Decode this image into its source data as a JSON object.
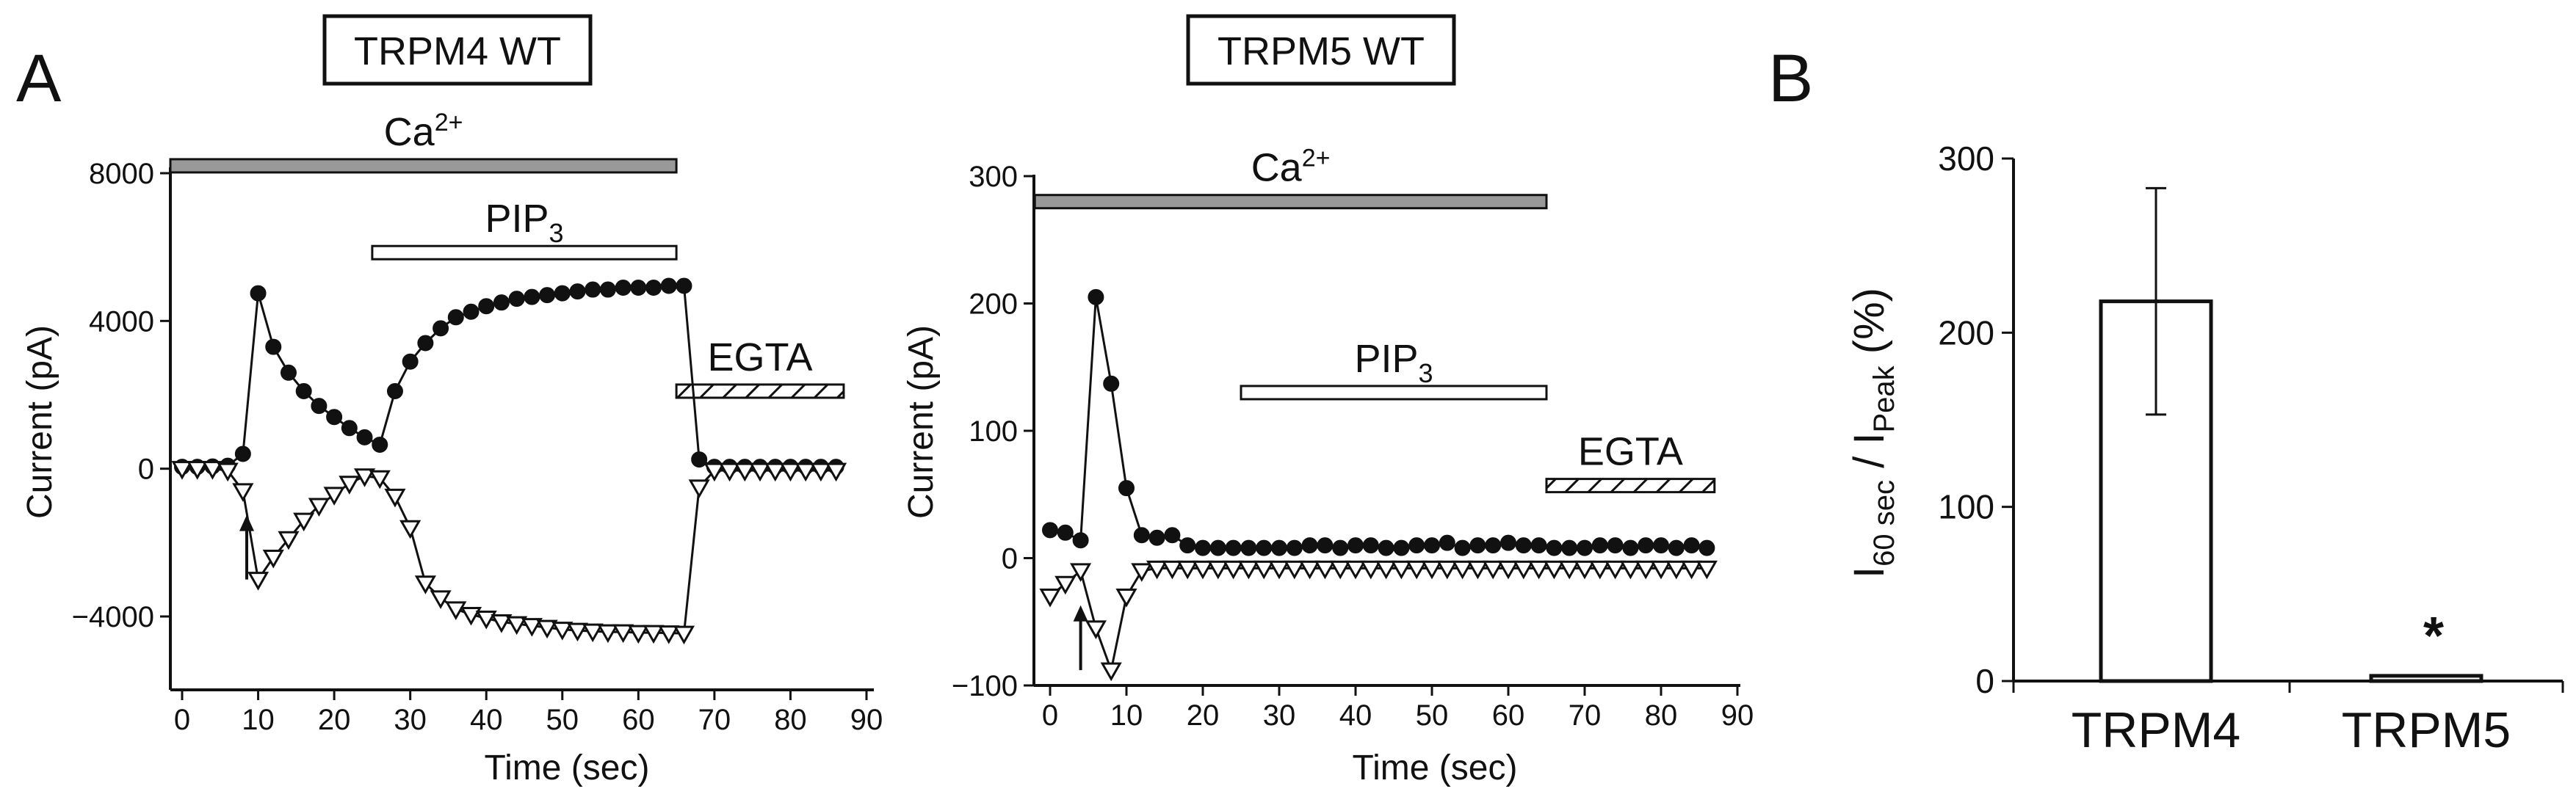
{
  "panel_labels": {
    "a": "A",
    "b": "B"
  },
  "chart_data": [
    {
      "id": "trpm4",
      "type": "scatter",
      "title": "TRPM4 WT",
      "xlabel": "Time (sec)",
      "ylabel": "Current (pA)",
      "xlim": [
        -2,
        90
      ],
      "ylim": [
        -6000,
        8200
      ],
      "xticks": [
        0,
        10,
        20,
        30,
        40,
        50,
        60,
        70,
        80,
        90
      ],
      "yticks": [
        -4000,
        0,
        4000,
        8000
      ],
      "ytick_labels": [
        "−4000",
        "0",
        "4000",
        "8000"
      ],
      "grid": false,
      "arrow": {
        "x": 8.5,
        "y_from": -3000,
        "y_to": -1250
      },
      "bars": [
        {
          "label": "Ca",
          "sup": "2+",
          "sub": "",
          "x0": -2,
          "x1": 65,
          "y": 8200,
          "style": "gray"
        },
        {
          "label": "PIP",
          "sup": "",
          "sub": "3",
          "x0": 25,
          "x1": 65,
          "y": 5850,
          "style": "open"
        },
        {
          "label": "EGTA",
          "sup": "",
          "sub": "",
          "x0": 65,
          "x1": 87,
          "y": 2100,
          "style": "hatched"
        }
      ],
      "series": [
        {
          "marker": "filled-circle",
          "x": [
            0,
            2,
            4,
            6,
            8,
            10,
            12,
            14,
            16,
            18,
            20,
            22,
            24,
            26,
            28,
            30,
            32,
            34,
            36,
            38,
            40,
            42,
            44,
            46,
            48,
            50,
            52,
            54,
            56,
            58,
            60,
            62,
            64,
            66,
            68,
            70,
            72,
            74,
            76,
            78,
            80,
            82,
            84,
            86
          ],
          "y": [
            50,
            50,
            60,
            80,
            400,
            4750,
            3300,
            2600,
            2100,
            1700,
            1400,
            1100,
            850,
            650,
            2100,
            2900,
            3400,
            3800,
            4100,
            4250,
            4400,
            4500,
            4600,
            4650,
            4700,
            4750,
            4800,
            4850,
            4850,
            4900,
            4900,
            4900,
            4950,
            4950,
            250,
            50,
            50,
            50,
            50,
            50,
            50,
            50,
            50,
            50
          ]
        },
        {
          "marker": "open-triangle-down",
          "x": [
            0,
            2,
            4,
            6,
            8,
            10,
            12,
            14,
            16,
            18,
            20,
            22,
            24,
            26,
            28,
            30,
            32,
            34,
            36,
            38,
            40,
            42,
            44,
            46,
            48,
            50,
            52,
            54,
            56,
            58,
            60,
            62,
            64,
            66,
            68,
            70,
            72,
            74,
            76,
            78,
            80,
            82,
            84,
            86
          ],
          "y": [
            0,
            0,
            0,
            -50,
            -600,
            -3000,
            -2400,
            -1900,
            -1400,
            -1000,
            -700,
            -400,
            -200,
            -250,
            -750,
            -1600,
            -3100,
            -3500,
            -3800,
            -3950,
            -4050,
            -4150,
            -4200,
            -4250,
            -4300,
            -4350,
            -4380,
            -4400,
            -4420,
            -4420,
            -4440,
            -4440,
            -4450,
            -4460,
            -500,
            -50,
            -50,
            -50,
            -50,
            -50,
            -50,
            -50,
            -50,
            -50
          ]
        }
      ]
    },
    {
      "id": "trpm5",
      "type": "scatter",
      "title": "TRPM5 WT",
      "xlabel": "Time (sec)",
      "ylabel": "Current (pA)",
      "xlim": [
        -2,
        90
      ],
      "ylim": [
        -100,
        300
      ],
      "xticks": [
        0,
        10,
        20,
        30,
        40,
        50,
        60,
        70,
        80,
        90
      ],
      "yticks": [
        -100,
        0,
        100,
        200,
        300
      ],
      "ytick_labels": [
        "−100",
        "0",
        "100",
        "200",
        "300"
      ],
      "grid": false,
      "arrow": {
        "x": 4,
        "y_from": -88,
        "y_to": -37
      },
      "bars": [
        {
          "label": "Ca",
          "sup": "2+",
          "sub": "",
          "x0": -2,
          "x1": 65,
          "y": 280,
          "style": "gray"
        },
        {
          "label": "PIP",
          "sup": "",
          "sub": "3",
          "x0": 25,
          "x1": 65,
          "y": 130,
          "style": "open"
        },
        {
          "label": "EGTA",
          "sup": "",
          "sub": "",
          "x0": 65,
          "x1": 87,
          "y": 57,
          "style": "hatched"
        }
      ],
      "series": [
        {
          "marker": "filled-circle",
          "x": [
            0,
            2,
            4,
            6,
            8,
            10,
            12,
            14,
            16,
            18,
            20,
            22,
            24,
            26,
            28,
            30,
            32,
            34,
            36,
            38,
            40,
            42,
            44,
            46,
            48,
            50,
            52,
            54,
            56,
            58,
            60,
            62,
            64,
            66,
            68,
            70,
            72,
            74,
            76,
            78,
            80,
            82,
            84,
            86
          ],
          "y": [
            22,
            20,
            14,
            205,
            137,
            55,
            18,
            16,
            18,
            10,
            8,
            8,
            8,
            8,
            8,
            8,
            8,
            10,
            10,
            8,
            10,
            10,
            8,
            8,
            10,
            10,
            12,
            8,
            10,
            10,
            12,
            10,
            10,
            8,
            8,
            8,
            10,
            10,
            8,
            10,
            10,
            8,
            10,
            8
          ]
        },
        {
          "marker": "open-triangle-down",
          "x": [
            0,
            2,
            4,
            6,
            8,
            10,
            12,
            14,
            16,
            18,
            20,
            22,
            24,
            26,
            28,
            30,
            32,
            34,
            36,
            38,
            40,
            42,
            44,
            46,
            48,
            50,
            52,
            54,
            56,
            58,
            60,
            62,
            64,
            66,
            68,
            70,
            72,
            74,
            76,
            78,
            80,
            82,
            84,
            86
          ],
          "y": [
            -30,
            -20,
            -10,
            -55,
            -88,
            -30,
            -10,
            -8,
            -8,
            -8,
            -8,
            -8,
            -8,
            -8,
            -8,
            -8,
            -8,
            -8,
            -8,
            -8,
            -8,
            -8,
            -8,
            -8,
            -8,
            -8,
            -8,
            -8,
            -8,
            -8,
            -8,
            -8,
            -8,
            -8,
            -8,
            -8,
            -8,
            -8,
            -8,
            -8,
            -8,
            -8,
            -8,
            -8
          ]
        }
      ]
    },
    {
      "id": "summary",
      "type": "bar",
      "categories": [
        "TRPM4",
        "TRPM5"
      ],
      "values": [
        218,
        3
      ],
      "errors": [
        65,
        0
      ],
      "ylim": [
        0,
        300
      ],
      "yticks": [
        0,
        100,
        200,
        300
      ],
      "ylabel": {
        "main_a": "I",
        "sub_a": "60 sec",
        "sep": " / I",
        "sub_b": "Peak",
        "tail": " (%)"
      },
      "significance": [
        "",
        "*"
      ],
      "grid": false
    }
  ]
}
